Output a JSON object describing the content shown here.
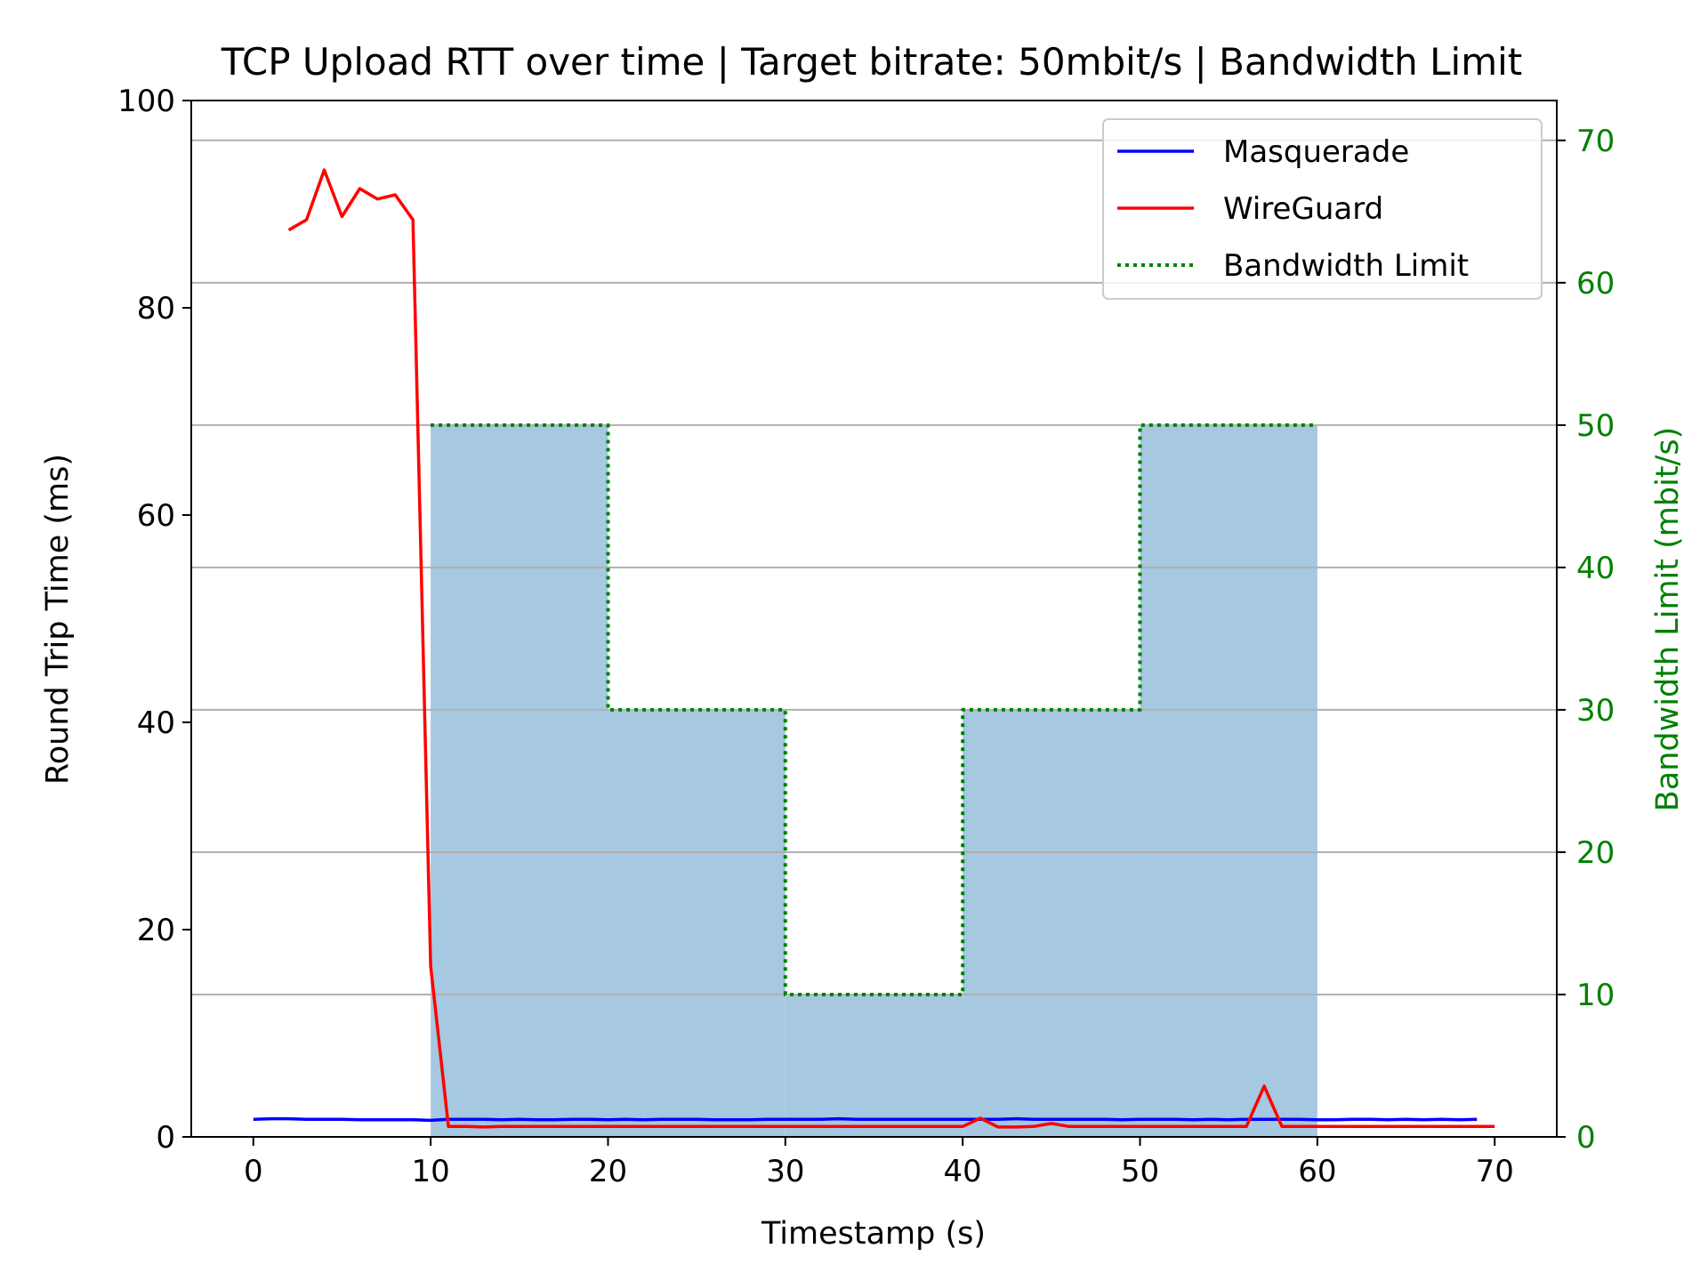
{
  "chart_data": {
    "type": "line",
    "title": "TCP Upload RTT over time | Target bitrate: 50mbit/s | Bandwidth Limit",
    "xlabel": "Timestamp (s)",
    "ylabel": "Round Trip Time (ms)",
    "y2label": "Bandwidth Limit (mbit/s)",
    "xlim": [
      -3.5,
      73.5
    ],
    "ylim": [
      0,
      100
    ],
    "y2lim": [
      0,
      72.8
    ],
    "xticks": [
      "0",
      "10",
      "20",
      "30",
      "40",
      "50",
      "60",
      "70"
    ],
    "yticks": [
      "0",
      "20",
      "40",
      "60",
      "80",
      "100"
    ],
    "y2ticks": [
      "0",
      "10",
      "20",
      "30",
      "40",
      "50",
      "60",
      "70"
    ],
    "grid": "right-axis horizontal",
    "legend_position": "top-right",
    "colors": {
      "masquerade": "#0000ff",
      "wireguard": "#ff0000",
      "limit": "#008000",
      "fill": "#a6c8e0",
      "grid": "#b0b0b0",
      "y2axis": "#008000"
    },
    "series": [
      {
        "name": "Masquerade",
        "x": [
          0,
          1,
          2,
          3,
          4,
          5,
          6,
          7,
          8,
          9,
          10,
          11,
          12,
          13,
          14,
          15,
          16,
          17,
          18,
          19,
          20,
          21,
          22,
          23,
          24,
          25,
          26,
          27,
          28,
          29,
          30,
          31,
          32,
          33,
          34,
          35,
          36,
          37,
          38,
          39,
          40,
          41,
          42,
          43,
          44,
          45,
          46,
          47,
          48,
          49,
          50,
          51,
          52,
          53,
          54,
          55,
          56,
          57,
          58,
          59,
          60,
          61,
          62,
          63,
          64,
          65,
          66,
          67,
          68,
          69
        ],
        "y": [
          1.7,
          1.75,
          1.75,
          1.7,
          1.7,
          1.7,
          1.65,
          1.65,
          1.65,
          1.65,
          1.6,
          1.7,
          1.7,
          1.7,
          1.65,
          1.7,
          1.65,
          1.65,
          1.7,
          1.7,
          1.65,
          1.7,
          1.65,
          1.7,
          1.7,
          1.7,
          1.65,
          1.65,
          1.65,
          1.7,
          1.7,
          1.7,
          1.7,
          1.75,
          1.7,
          1.7,
          1.7,
          1.7,
          1.7,
          1.7,
          1.7,
          1.7,
          1.7,
          1.75,
          1.7,
          1.7,
          1.7,
          1.7,
          1.7,
          1.65,
          1.7,
          1.7,
          1.7,
          1.65,
          1.7,
          1.65,
          1.7,
          1.7,
          1.7,
          1.7,
          1.65,
          1.65,
          1.7,
          1.7,
          1.65,
          1.7,
          1.65,
          1.7,
          1.65,
          1.7
        ]
      },
      {
        "name": "WireGuard",
        "x": [
          2,
          3,
          4,
          5,
          6,
          7,
          8,
          9,
          10,
          11,
          12,
          13,
          14,
          15,
          16,
          17,
          18,
          19,
          20,
          21,
          22,
          23,
          24,
          25,
          26,
          27,
          28,
          29,
          30,
          31,
          32,
          33,
          34,
          35,
          36,
          37,
          38,
          39,
          40,
          41,
          42,
          43,
          44,
          45,
          46,
          47,
          48,
          49,
          50,
          51,
          52,
          53,
          54,
          55,
          56,
          57,
          58,
          59,
          60,
          61,
          62,
          63,
          64,
          65,
          66,
          67,
          68,
          69,
          70
        ],
        "y": [
          87.5,
          88.5,
          93.3,
          88.8,
          91.5,
          90.5,
          90.9,
          88.5,
          16.5,
          1.0,
          1.0,
          0.95,
          1.0,
          1.0,
          1.0,
          1.0,
          1.0,
          1.0,
          1.0,
          1.0,
          1.0,
          1.0,
          1.0,
          1.0,
          1.0,
          1.0,
          1.0,
          1.0,
          1.0,
          1.0,
          1.0,
          1.0,
          1.0,
          1.0,
          1.0,
          1.0,
          1.0,
          1.0,
          1.0,
          1.8,
          0.95,
          0.95,
          1.0,
          1.3,
          1.0,
          1.0,
          1.0,
          1.0,
          1.0,
          1.0,
          1.0,
          1.0,
          1.0,
          1.0,
          1.0,
          4.9,
          1.0,
          1.0,
          1.0,
          1.0,
          1.0,
          1.0,
          1.0,
          1.0,
          1.0,
          1.0,
          1.0,
          1.0,
          1.0
        ]
      },
      {
        "name": "Bandwidth Limit",
        "axis": "right",
        "style": "dotted",
        "x": [
          10,
          20,
          20,
          30,
          30,
          40,
          40,
          50,
          50,
          60
        ],
        "y": [
          50,
          50,
          30,
          30,
          10,
          10,
          30,
          30,
          50,
          50
        ]
      }
    ],
    "fill": {
      "axis": "right",
      "segments": [
        {
          "x0": 10,
          "x1": 20,
          "value": 50
        },
        {
          "x0": 20,
          "x1": 30,
          "value": 30
        },
        {
          "x0": 30,
          "x1": 40,
          "value": 10
        },
        {
          "x0": 40,
          "x1": 50,
          "value": 30
        },
        {
          "x0": 50,
          "x1": 60,
          "value": 50
        }
      ]
    }
  }
}
